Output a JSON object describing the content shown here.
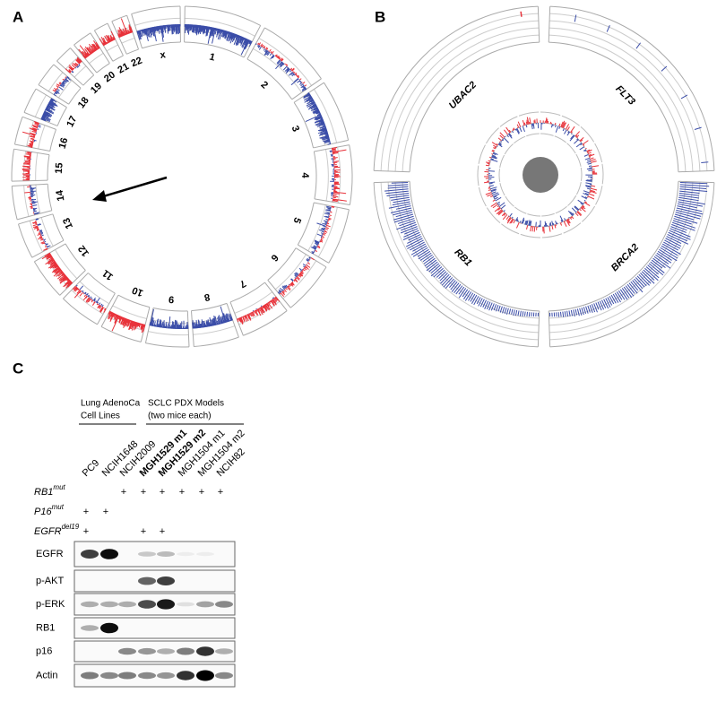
{
  "panels": {
    "A": {
      "label": "A",
      "chromosomes": [
        "1",
        "2",
        "3",
        "4",
        "5",
        "6",
        "7",
        "8",
        "9",
        "10",
        "11",
        "12",
        "13",
        "14",
        "15",
        "16",
        "17",
        "18",
        "19",
        "20",
        "21",
        "22",
        "x"
      ]
    },
    "B": {
      "label": "B",
      "genes": [
        "BRCA2",
        "RB1",
        "UBAC2",
        "FLT3"
      ]
    },
    "C": {
      "label": "C",
      "groups": [
        {
          "lines": [
            "Lung AdenoCa",
            "Cell Lines"
          ]
        },
        {
          "lines": [
            "SCLC PDX Models",
            "(two mice each)"
          ]
        }
      ],
      "samples": [
        {
          "name": "PC9",
          "bold": false
        },
        {
          "name": "NCIH1648",
          "bold": false
        },
        {
          "name": "NCIH2009",
          "bold": false
        },
        {
          "name": "MGH1529 m1",
          "bold": true
        },
        {
          "name": "MGH1529 m2",
          "bold": true
        },
        {
          "name": "MGH1504 m1",
          "bold": false
        },
        {
          "name": "MGH1504 m2",
          "bold": false
        },
        {
          "name": "NCIH82",
          "bold": false
        }
      ],
      "mutations": [
        {
          "gene": "RB1",
          "sup": "mut",
          "marks": [
            null,
            null,
            "+",
            "+",
            "+",
            "+",
            "+",
            "+"
          ]
        },
        {
          "gene": "P16",
          "sup": "mut",
          "marks": [
            "+",
            "+",
            null,
            null,
            null,
            null,
            null,
            null
          ]
        },
        {
          "gene": "EGFR",
          "sup": "del19",
          "marks": [
            "+",
            null,
            null,
            "+",
            "+",
            null,
            null,
            null
          ]
        }
      ],
      "blots": [
        "EGFR",
        "p-AKT",
        "p-ERK",
        "RB1",
        "p16",
        "Actin"
      ]
    }
  }
}
